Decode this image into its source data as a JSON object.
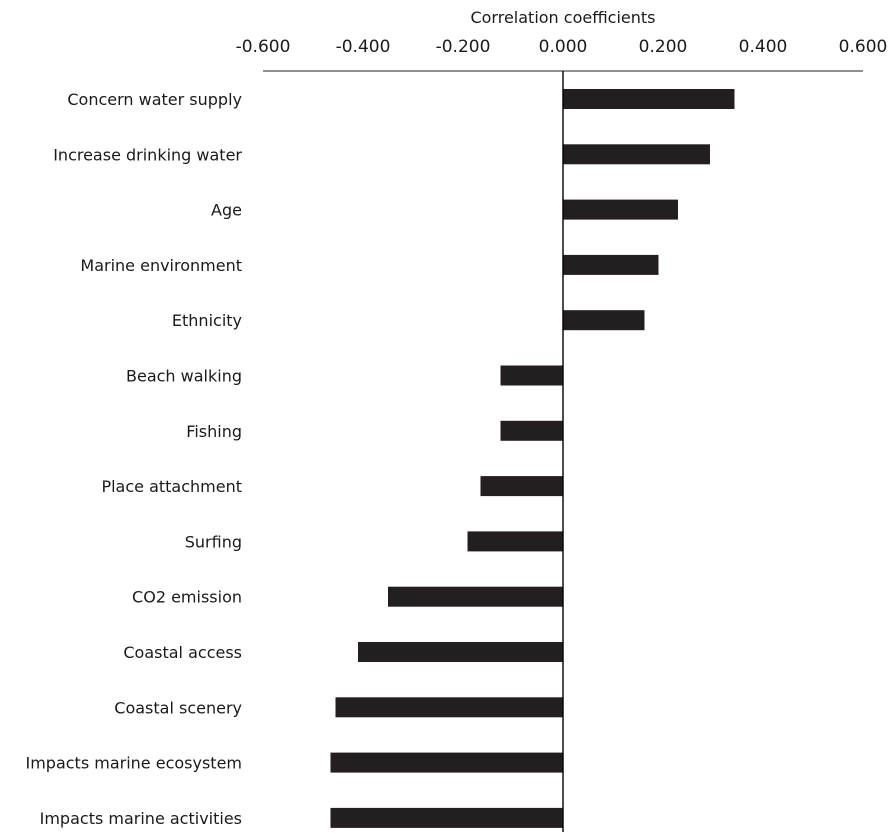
{
  "chart_data": {
    "type": "bar",
    "orientation": "horizontal",
    "title": "",
    "xlabel": "Correlation coefficients",
    "ylabel": "",
    "xlim": [
      -0.6,
      0.6
    ],
    "xticks": [
      -0.6,
      -0.4,
      -0.2,
      0.0,
      0.2,
      0.4,
      0.6
    ],
    "xtick_labels": [
      "-0.600",
      "-0.400",
      "-0.200",
      "0.000",
      "0.200",
      "0.400",
      "0.600"
    ],
    "x_axis_position": "top",
    "grid": false,
    "bar_color": "#231f20",
    "categories": [
      "Concern water supply",
      "Increase drinking water",
      "Age",
      "Marine environment",
      "Ethnicity",
      "Beach walking",
      "Fishing",
      "Place attachment",
      "Surfing",
      "CO2 emission",
      "Coastal access",
      "Coastal scenery",
      "Impacts marine ecosystem",
      "Impacts marine activities"
    ],
    "values": [
      0.343,
      0.294,
      0.23,
      0.191,
      0.163,
      -0.125,
      -0.125,
      -0.165,
      -0.191,
      -0.35,
      -0.41,
      -0.455,
      -0.465,
      -0.465
    ]
  }
}
